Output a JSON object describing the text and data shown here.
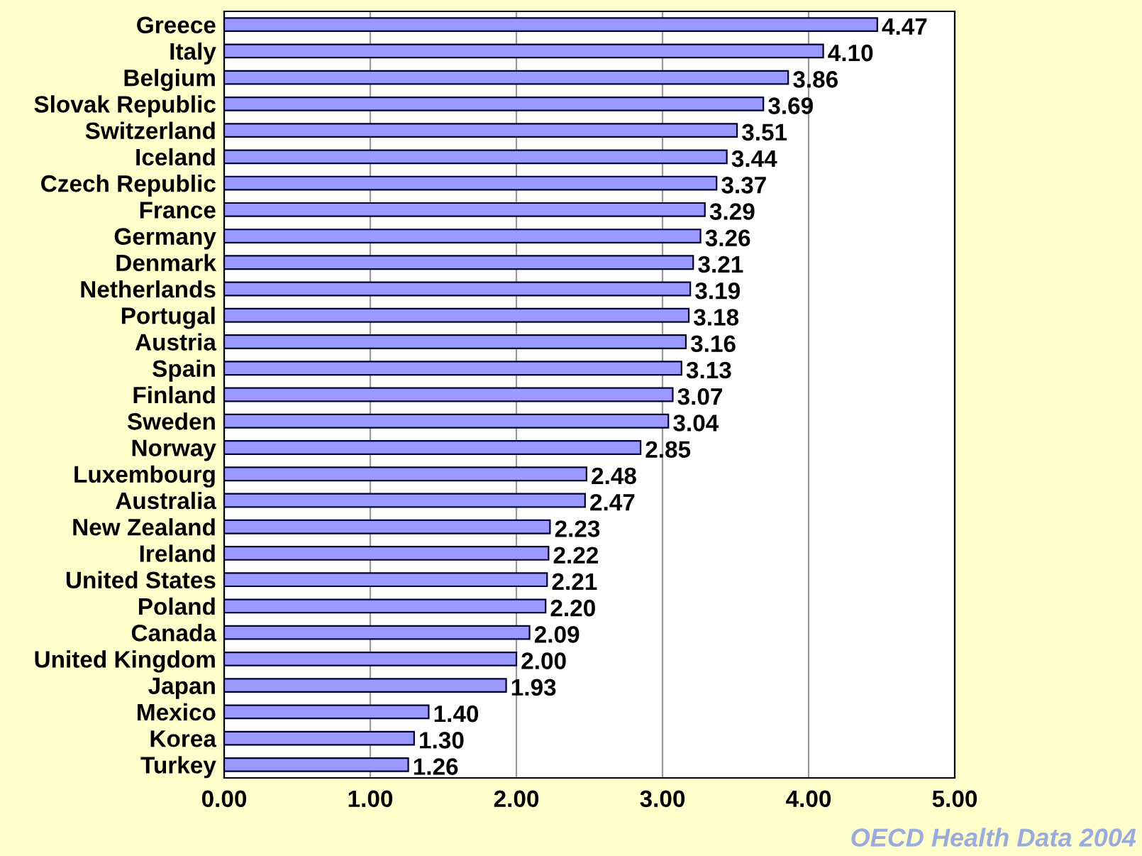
{
  "chart_data": {
    "type": "bar",
    "orientation": "horizontal",
    "categories": [
      "Greece",
      "Italy",
      "Belgium",
      "Slovak Republic",
      "Switzerland",
      "Iceland",
      "Czech Republic",
      "France",
      "Germany",
      "Denmark",
      "Netherlands",
      "Portugal",
      "Austria",
      "Spain",
      "Finland",
      "Sweden",
      "Norway",
      "Luxembourg",
      "Australia",
      "New Zealand",
      "Ireland",
      "United States",
      "Poland",
      "Canada",
      "United Kingdom",
      "Japan",
      "Mexico",
      "Korea",
      "Turkey"
    ],
    "values": [
      4.47,
      4.1,
      3.86,
      3.69,
      3.51,
      3.44,
      3.37,
      3.29,
      3.26,
      3.21,
      3.19,
      3.18,
      3.16,
      3.13,
      3.07,
      3.04,
      2.85,
      2.48,
      2.47,
      2.23,
      2.22,
      2.21,
      2.2,
      2.09,
      2.0,
      1.93,
      1.4,
      1.3,
      1.26
    ],
    "value_labels": [
      "4.47",
      "4.10",
      "3.86",
      "3.69",
      "3.51",
      "3.44",
      "3.37",
      "3.29",
      "3.26",
      "3.21",
      "3.19",
      "3.18",
      "3.16",
      "3.13",
      "3.07",
      "3.04",
      "2.85",
      "2.48",
      "2.47",
      "2.23",
      "2.22",
      "2.21",
      "2.20",
      "2.09",
      "2.00",
      "1.93",
      "1.40",
      "1.30",
      "1.26"
    ],
    "color": "#9999ff",
    "xlim": [
      0,
      5
    ],
    "xticks": [
      {
        "value": 0,
        "label": "0.00"
      },
      {
        "value": 1,
        "label": "1.00"
      },
      {
        "value": 2,
        "label": "2.00"
      },
      {
        "value": 3,
        "label": "3.00"
      },
      {
        "value": 4,
        "label": "4.00"
      },
      {
        "value": 5,
        "label": "5.00"
      }
    ],
    "grid": "x",
    "annotations": [
      "OECD Health Data 2004"
    ]
  }
}
